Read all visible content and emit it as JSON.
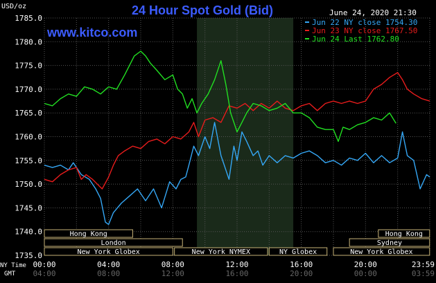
{
  "header": {
    "title": "24 Hour Spot Gold (Bid)",
    "website": "www.kitco.com",
    "timestamp": "June 24, 2020 21:30",
    "unit_label": "USD/oz"
  },
  "colors": {
    "background": "#000000",
    "title": "#3c5cff",
    "website": "#3c5cff",
    "axis_text": "#ffffff",
    "grid": "#555555",
    "ny_session_shade": "#1a2a1a",
    "session_box_border": "#c8b478",
    "series_jun22": "#35a7f5",
    "series_jun23": "#e81c1c",
    "series_jun24": "#22e022"
  },
  "chart_data": {
    "type": "line",
    "title": "24 Hour Spot Gold (Bid)",
    "ylabel": "USD/oz",
    "ylim": [
      1735,
      1785
    ],
    "y_ticks": [
      "1785.0",
      "1780.0",
      "1775.0",
      "1770.0",
      "1765.0",
      "1760.0",
      "1755.0",
      "1750.0",
      "1745.0",
      "1740.0",
      "1735.0"
    ],
    "y_tick_values": [
      1785,
      1780,
      1775,
      1770,
      1765,
      1760,
      1755,
      1750,
      1745,
      1740,
      1735
    ],
    "xlim": [
      0,
      24
    ],
    "ny_time_label": "NY Time",
    "gmt_label": "GMT",
    "x_ticks_ny": [
      "00:00",
      "04:00",
      "08:00",
      "12:00",
      "16:00",
      "20:00",
      "23:59"
    ],
    "x_ticks_gmt": [
      "04:00",
      "08:00",
      "12:00",
      "16:00",
      "20:00",
      "00:00",
      "03:59"
    ],
    "x_tick_hours": [
      0,
      4,
      8,
      12,
      16,
      20,
      24
    ],
    "ny_session_shade_hours": [
      9.5,
      15.5
    ],
    "series": [
      {
        "name": "Jun 22 NY close 1754.30",
        "color": "#35a7f5",
        "x": [
          0,
          0.5,
          1,
          1.5,
          1.8,
          2.3,
          2.8,
          3.2,
          3.5,
          3.8,
          4.0,
          4.3,
          4.8,
          5.3,
          5.8,
          6.3,
          6.8,
          7.3,
          7.8,
          8.2,
          8.5,
          8.8,
          9.0,
          9.3,
          9.6,
          10.0,
          10.3,
          10.6,
          11.0,
          11.3,
          11.5,
          11.8,
          12.0,
          12.3,
          12.6,
          13.0,
          13.3,
          13.6,
          14.0,
          14.5,
          15.0,
          15.5,
          16.0,
          16.5,
          17.0,
          17.5,
          18.0,
          18.5,
          19.0,
          19.5,
          20.0,
          20.5,
          21.0,
          21.5,
          22.0,
          22.3,
          22.6,
          23.0,
          23.4,
          23.8,
          24.0
        ],
        "y": [
          1754,
          1753.5,
          1754,
          1753,
          1754.5,
          1752,
          1751,
          1749,
          1747,
          1742,
          1741.5,
          1744,
          1746,
          1747.5,
          1749,
          1746.5,
          1749,
          1745,
          1750.5,
          1749,
          1751,
          1751.5,
          1754,
          1758,
          1756,
          1760,
          1757.5,
          1763,
          1756,
          1753,
          1751,
          1758,
          1755,
          1761,
          1759,
          1756,
          1757,
          1754,
          1756,
          1754.5,
          1756,
          1755.5,
          1756.5,
          1757,
          1756,
          1754.5,
          1755,
          1754,
          1755.5,
          1755,
          1756.5,
          1754.5,
          1756,
          1754.5,
          1755.5,
          1761,
          1756,
          1755,
          1749,
          1752,
          1751.5
        ]
      },
      {
        "name": "Jun 23 NY close 1767.50",
        "color": "#e81c1c",
        "x": [
          0,
          0.5,
          1.0,
          1.5,
          2.0,
          2.3,
          2.6,
          3.0,
          3.3,
          3.6,
          4.0,
          4.3,
          4.6,
          5.0,
          5.5,
          6.0,
          6.5,
          7.0,
          7.5,
          8.0,
          8.5,
          9.0,
          9.3,
          9.6,
          10.0,
          10.5,
          11.0,
          11.5,
          12.0,
          12.5,
          13.0,
          13.5,
          14.0,
          14.5,
          15.0,
          15.5,
          16.0,
          16.5,
          17.0,
          17.5,
          18.0,
          18.5,
          19.0,
          19.5,
          20.0,
          20.5,
          21.0,
          21.5,
          22.0,
          22.3,
          22.6,
          23.0,
          23.5,
          24.0
        ],
        "y": [
          1751,
          1750.5,
          1752,
          1753,
          1753.5,
          1751,
          1752,
          1751,
          1750,
          1749,
          1751.5,
          1754,
          1756,
          1757,
          1758,
          1757.5,
          1759,
          1759.5,
          1758.5,
          1760,
          1759.5,
          1761,
          1763,
          1760,
          1763.5,
          1764,
          1763,
          1766.5,
          1766,
          1767,
          1765.5,
          1767,
          1766,
          1767.5,
          1766,
          1765.5,
          1766.5,
          1767,
          1765.5,
          1767,
          1767.5,
          1767,
          1767.5,
          1767,
          1767.5,
          1770,
          1771,
          1772.5,
          1773.5,
          1772,
          1770,
          1769,
          1768,
          1767.5
        ]
      },
      {
        "name": "Jun 24 Last 1762.80",
        "color": "#22e022",
        "x": [
          0,
          0.5,
          1.0,
          1.5,
          2.0,
          2.5,
          3.0,
          3.5,
          4.0,
          4.5,
          5.0,
          5.3,
          5.6,
          6.0,
          6.3,
          6.6,
          7.0,
          7.5,
          8.0,
          8.3,
          8.6,
          8.9,
          9.2,
          9.5,
          9.8,
          10.2,
          10.6,
          11.0,
          11.3,
          11.6,
          11.8,
          12.0,
          12.3,
          12.6,
          13.0,
          13.5,
          14.0,
          14.5,
          15.0,
          15.5,
          16.0,
          16.5,
          17.0,
          17.5,
          18.0,
          18.3,
          18.6,
          19.0,
          19.5,
          20.0,
          20.5,
          21.0,
          21.5,
          21.9
        ],
        "y": [
          1767,
          1766.5,
          1768,
          1769,
          1768.5,
          1770.5,
          1770,
          1769,
          1770.5,
          1770,
          1773,
          1775,
          1777,
          1778,
          1777,
          1775.5,
          1774,
          1772,
          1773,
          1770,
          1769,
          1766,
          1768,
          1765,
          1767,
          1769,
          1772,
          1776,
          1771,
          1765,
          1763,
          1761,
          1763,
          1765,
          1767,
          1766.5,
          1765.5,
          1766,
          1767,
          1765,
          1765,
          1764,
          1762,
          1761.5,
          1761.5,
          1759,
          1762,
          1761.5,
          1762.5,
          1763,
          1764,
          1763.5,
          1765,
          1762.8
        ]
      }
    ],
    "market_sessions": [
      {
        "label": "Hong Kong",
        "start": 0,
        "end": 5.5,
        "row": 0
      },
      {
        "label": "Hong Kong",
        "start": 20.8,
        "end": 23.99,
        "row": 0
      },
      {
        "label": "London",
        "start": 0,
        "end": 8.6,
        "row": 1
      },
      {
        "label": "Sydney",
        "start": 19.0,
        "end": 23.99,
        "row": 1
      },
      {
        "label": "New York Globex",
        "start": 0,
        "end": 8.0,
        "row": 2
      },
      {
        "label": "New York NYMEX",
        "start": 8.1,
        "end": 13.9,
        "row": 2
      },
      {
        "label": "NY Globex",
        "start": 14.0,
        "end": 17.6,
        "row": 2
      },
      {
        "label": "New York Globex",
        "start": 18.0,
        "end": 23.99,
        "row": 2
      }
    ]
  }
}
